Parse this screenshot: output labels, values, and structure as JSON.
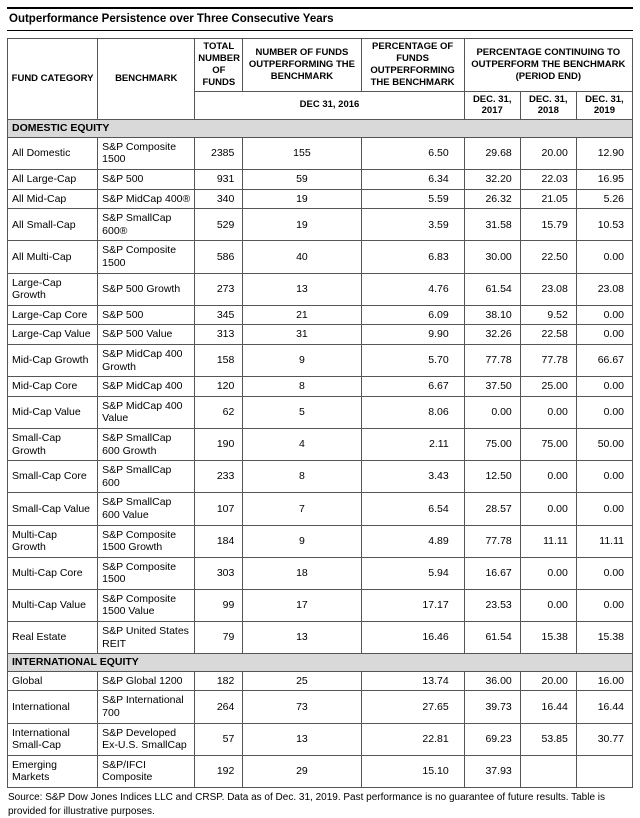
{
  "title": "Outperformance Persistence over Three Consecutive Years",
  "table": {
    "headers": {
      "fund_category": "FUND CATEGORY",
      "benchmark": "BENCHMARK",
      "total_funds": "TOTAL NUMBER OF FUNDS",
      "num_outperforming": "NUMBER OF FUNDS OUTPERFORMING THE BENCHMARK",
      "pct_outperforming": "PERCENTAGE OF FUNDS OUTPERFORMING THE BENCHMARK",
      "pct_continuing": "PERCENTAGE CONTINUING TO OUTPERFORM THE BENCHMARK (PERIOD END)",
      "date_2016": "DEC 31, 2016",
      "date_2017": "DEC. 31, 2017",
      "date_2018": "DEC. 31, 2018",
      "date_2019": "DEC. 31, 2019"
    },
    "sections": [
      {
        "label": "DOMESTIC EQUITY",
        "rows": [
          {
            "category": "All Domestic",
            "benchmark": "S&P Composite 1500",
            "total": "2385",
            "num": "155",
            "pct": "6.50",
            "y2017": "29.68",
            "y2018": "20.00",
            "y2019": "12.90"
          },
          {
            "category": "All Large-Cap",
            "benchmark": "S&P 500",
            "total": "931",
            "num": "59",
            "pct": "6.34",
            "y2017": "32.20",
            "y2018": "22.03",
            "y2019": "16.95"
          },
          {
            "category": "All Mid-Cap",
            "benchmark": "S&P MidCap 400®",
            "total": "340",
            "num": "19",
            "pct": "5.59",
            "y2017": "26.32",
            "y2018": "21.05",
            "y2019": "5.26"
          },
          {
            "category": "All Small-Cap",
            "benchmark": "S&P SmallCap 600®",
            "total": "529",
            "num": "19",
            "pct": "3.59",
            "y2017": "31.58",
            "y2018": "15.79",
            "y2019": "10.53"
          },
          {
            "category": "All Multi-Cap",
            "benchmark": "S&P Composite 1500",
            "total": "586",
            "num": "40",
            "pct": "6.83",
            "y2017": "30.00",
            "y2018": "22.50",
            "y2019": "0.00"
          },
          {
            "category": "Large-Cap Growth",
            "benchmark": "S&P 500 Growth",
            "total": "273",
            "num": "13",
            "pct": "4.76",
            "y2017": "61.54",
            "y2018": "23.08",
            "y2019": "23.08"
          },
          {
            "category": "Large-Cap Core",
            "benchmark": "S&P 500",
            "total": "345",
            "num": "21",
            "pct": "6.09",
            "y2017": "38.10",
            "y2018": "9.52",
            "y2019": "0.00"
          },
          {
            "category": "Large-Cap Value",
            "benchmark": "S&P 500 Value",
            "total": "313",
            "num": "31",
            "pct": "9.90",
            "y2017": "32.26",
            "y2018": "22.58",
            "y2019": "0.00"
          },
          {
            "category": "Mid-Cap Growth",
            "benchmark": "S&P MidCap 400 Growth",
            "total": "158",
            "num": "9",
            "pct": "5.70",
            "y2017": "77.78",
            "y2018": "77.78",
            "y2019": "66.67"
          },
          {
            "category": "Mid-Cap Core",
            "benchmark": "S&P MidCap 400",
            "total": "120",
            "num": "8",
            "pct": "6.67",
            "y2017": "37.50",
            "y2018": "25.00",
            "y2019": "0.00"
          },
          {
            "category": "Mid-Cap Value",
            "benchmark": "S&P MidCap 400 Value",
            "total": "62",
            "num": "5",
            "pct": "8.06",
            "y2017": "0.00",
            "y2018": "0.00",
            "y2019": "0.00"
          },
          {
            "category": "Small-Cap Growth",
            "benchmark": "S&P SmallCap 600 Growth",
            "total": "190",
            "num": "4",
            "pct": "2.11",
            "y2017": "75.00",
            "y2018": "75.00",
            "y2019": "50.00"
          },
          {
            "category": "Small-Cap Core",
            "benchmark": "S&P SmallCap 600",
            "total": "233",
            "num": "8",
            "pct": "3.43",
            "y2017": "12.50",
            "y2018": "0.00",
            "y2019": "0.00"
          },
          {
            "category": "Small-Cap Value",
            "benchmark": "S&P SmallCap 600 Value",
            "total": "107",
            "num": "7",
            "pct": "6.54",
            "y2017": "28.57",
            "y2018": "0.00",
            "y2019": "0.00"
          },
          {
            "category": "Multi-Cap Growth",
            "benchmark": "S&P Composite 1500 Growth",
            "total": "184",
            "num": "9",
            "pct": "4.89",
            "y2017": "77.78",
            "y2018": "11.11",
            "y2019": "11.11"
          },
          {
            "category": "Multi-Cap Core",
            "benchmark": "S&P Composite 1500",
            "total": "303",
            "num": "18",
            "pct": "5.94",
            "y2017": "16.67",
            "y2018": "0.00",
            "y2019": "0.00"
          },
          {
            "category": "Multi-Cap Value",
            "benchmark": "S&P Composite 1500 Value",
            "total": "99",
            "num": "17",
            "pct": "17.17",
            "y2017": "23.53",
            "y2018": "0.00",
            "y2019": "0.00"
          },
          {
            "category": "Real Estate",
            "benchmark": "S&P United States REIT",
            "total": "79",
            "num": "13",
            "pct": "16.46",
            "y2017": "61.54",
            "y2018": "15.38",
            "y2019": "15.38"
          }
        ]
      },
      {
        "label": "INTERNATIONAL EQUITY",
        "rows": [
          {
            "category": "Global",
            "benchmark": "S&P Global 1200",
            "total": "182",
            "num": "25",
            "pct": "13.74",
            "y2017": "36.00",
            "y2018": "20.00",
            "y2019": "16.00"
          },
          {
            "category": "International",
            "benchmark": "S&P International 700",
            "total": "264",
            "num": "73",
            "pct": "27.65",
            "y2017": "39.73",
            "y2018": "16.44",
            "y2019": "16.44"
          },
          {
            "category": "International Small-Cap",
            "benchmark": "S&P Developed Ex-U.S. SmallCap",
            "total": "57",
            "num": "13",
            "pct": "22.81",
            "y2017": "69.23",
            "y2018": "53.85",
            "y2019": "30.77"
          },
          {
            "category": "Emerging Markets",
            "benchmark": "S&P/IFCI Composite",
            "total": "192",
            "num": "29",
            "pct": "15.10",
            "y2017": "37.93",
            "y2018": "",
            "y2019": ""
          }
        ]
      }
    ]
  },
  "footer": "Source: S&P Dow Jones Indices LLC and CRSP.  Data as of Dec. 31, 2019.  Past performance is no guarantee of future results.  Table is provided for illustrative purposes."
}
